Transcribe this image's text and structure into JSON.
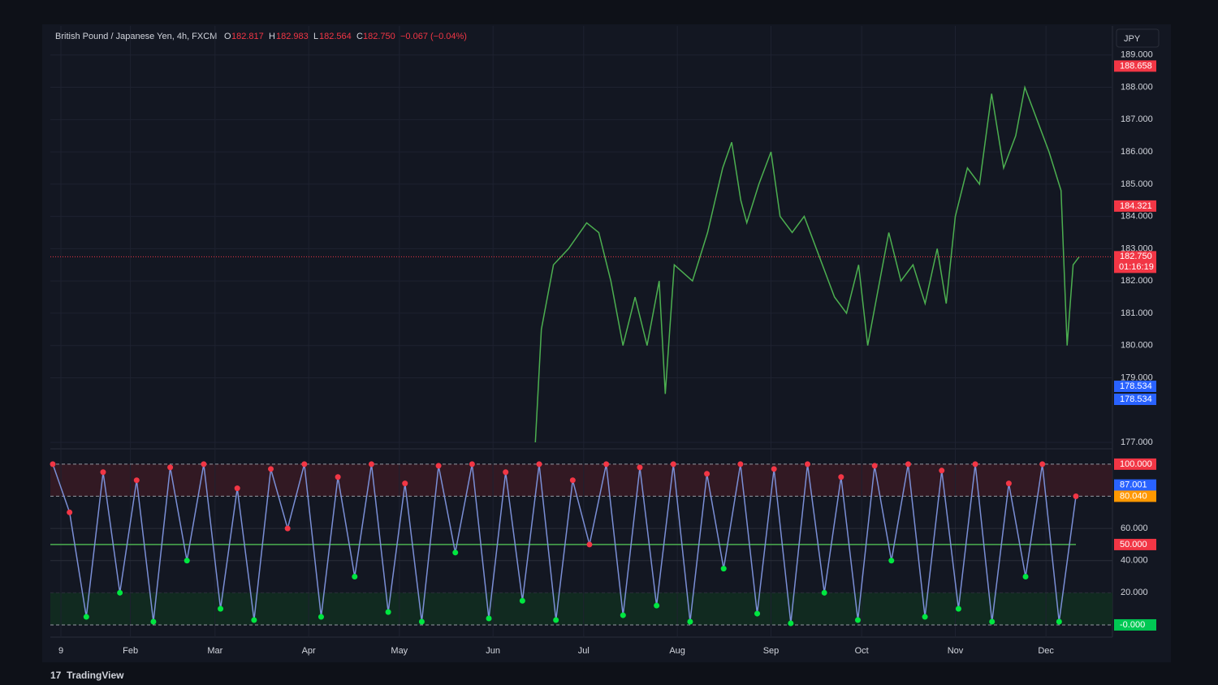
{
  "header": {
    "symbol": "British Pound / Japanese Yen, 4h, FXCM",
    "o_label": "O",
    "o": "182.817",
    "h_label": "H",
    "h": "182.983",
    "l_label": "L",
    "l": "182.564",
    "c_label": "C",
    "c": "182.750",
    "change": "−0.067 (−0.04%)",
    "currency": "JPY",
    "countdown": "01:16:19",
    "brand": "TradingView"
  },
  "chart_data": [
    {
      "type": "line",
      "color": "#4caf50",
      "x": [
        157,
        159,
        163,
        168,
        174,
        178,
        182,
        186,
        190,
        194,
        198,
        200,
        203,
        209,
        214,
        219,
        222,
        225,
        227,
        231,
        235,
        238,
        242,
        246,
        252,
        256,
        260,
        264,
        267,
        270,
        274,
        278,
        282,
        286,
        290,
        293,
        296,
        300,
        304,
        308,
        312,
        316,
        319,
        323,
        327,
        331,
        333,
        335,
        337
      ],
      "values": [
        177.0,
        180.5,
        182.5,
        183.0,
        183.8,
        183.5,
        182.0,
        180.0,
        181.5,
        180.0,
        182.0,
        178.5,
        182.5,
        182.0,
        183.5,
        185.5,
        186.3,
        184.5,
        183.8,
        185.0,
        186.0,
        184.0,
        183.5,
        184.0,
        182.5,
        181.5,
        181.0,
        182.5,
        180.0,
        181.5,
        183.5,
        182.0,
        182.5,
        181.3,
        183.0,
        181.3,
        184.0,
        185.5,
        185.0,
        187.8,
        185.5,
        186.5,
        188.0,
        187.0,
        186.0,
        184.8,
        180.0,
        182.5,
        182.75
      ],
      "xlim": [
        -3.5,
        348
      ],
      "ylim": [
        177,
        189.9
      ],
      "xticks": [
        {
          "value": 0,
          "label": "9"
        },
        {
          "value": 23,
          "label": "Feb"
        },
        {
          "value": 51,
          "label": "Mar"
        },
        {
          "value": 82,
          "label": "Apr"
        },
        {
          "value": 112,
          "label": "May"
        },
        {
          "value": 143,
          "label": "Jun"
        },
        {
          "value": 173,
          "label": "Jul"
        },
        {
          "value": 204,
          "label": "Aug"
        },
        {
          "value": 235,
          "label": "Sep"
        },
        {
          "value": 265,
          "label": "Oct"
        },
        {
          "value": 296,
          "label": "Nov"
        },
        {
          "value": 326,
          "label": "Dec"
        }
      ],
      "yticks": [
        {
          "value": 189,
          "label": "189.000"
        },
        {
          "value": 188,
          "label": "188.000"
        },
        {
          "value": 187,
          "label": "187.000"
        },
        {
          "value": 186,
          "label": "186.000"
        },
        {
          "value": 185,
          "label": "185.000"
        },
        {
          "value": 184,
          "label": "184.000"
        },
        {
          "value": 183,
          "label": "183.000"
        },
        {
          "value": 182,
          "label": "182.000"
        },
        {
          "value": 181,
          "label": "181.000"
        },
        {
          "value": 180,
          "label": "180.000"
        },
        {
          "value": 179,
          "label": "179.000"
        },
        {
          "value": 177,
          "label": "177.000"
        }
      ],
      "price_tags": [
        {
          "value": 188.658,
          "label": "188.658",
          "color": "#f23645"
        },
        {
          "value": 184.321,
          "label": "184.321",
          "color": "#f23645"
        },
        {
          "value": 182.75,
          "label": "182.750",
          "color": "#f23645"
        },
        {
          "value": 178.534,
          "label": "178.534",
          "color": "#2962ff"
        },
        {
          "value": 178.534,
          "label": "178.534",
          "color": "#2962ff"
        }
      ]
    },
    {
      "type": "line",
      "color": "#7b8fd6",
      "values": [
        100,
        70,
        5,
        95,
        20,
        90,
        2,
        98,
        40,
        100,
        10,
        85,
        3,
        97,
        60,
        100,
        5,
        92,
        30,
        100,
        8,
        88,
        2,
        99,
        45,
        100,
        4,
        95,
        15,
        100,
        3,
        90,
        50,
        100,
        6,
        98,
        12,
        100,
        2,
        94,
        35,
        100,
        7,
        97,
        1,
        100,
        20,
        92,
        3,
        99,
        40,
        100,
        5,
        96,
        10,
        100,
        2,
        88,
        30,
        100,
        2,
        80
      ],
      "ylim": [
        -7.6,
        106
      ],
      "yticks": [
        {
          "value": 60,
          "label": "60.000"
        },
        {
          "value": 40,
          "label": "40.000"
        },
        {
          "value": 20,
          "label": "20.000"
        }
      ],
      "price_tags": [
        {
          "value": 100,
          "label": "100.000",
          "color": "#f23645"
        },
        {
          "value": 87.001,
          "label": "87.001",
          "color": "#2962ff"
        },
        {
          "value": 80.04,
          "label": "80.040",
          "color": "#ff9800"
        },
        {
          "value": 50,
          "label": "50.000",
          "color": "#f23645"
        },
        {
          "value": 0,
          "label": "-0.000",
          "color": "#00c853"
        }
      ]
    }
  ]
}
